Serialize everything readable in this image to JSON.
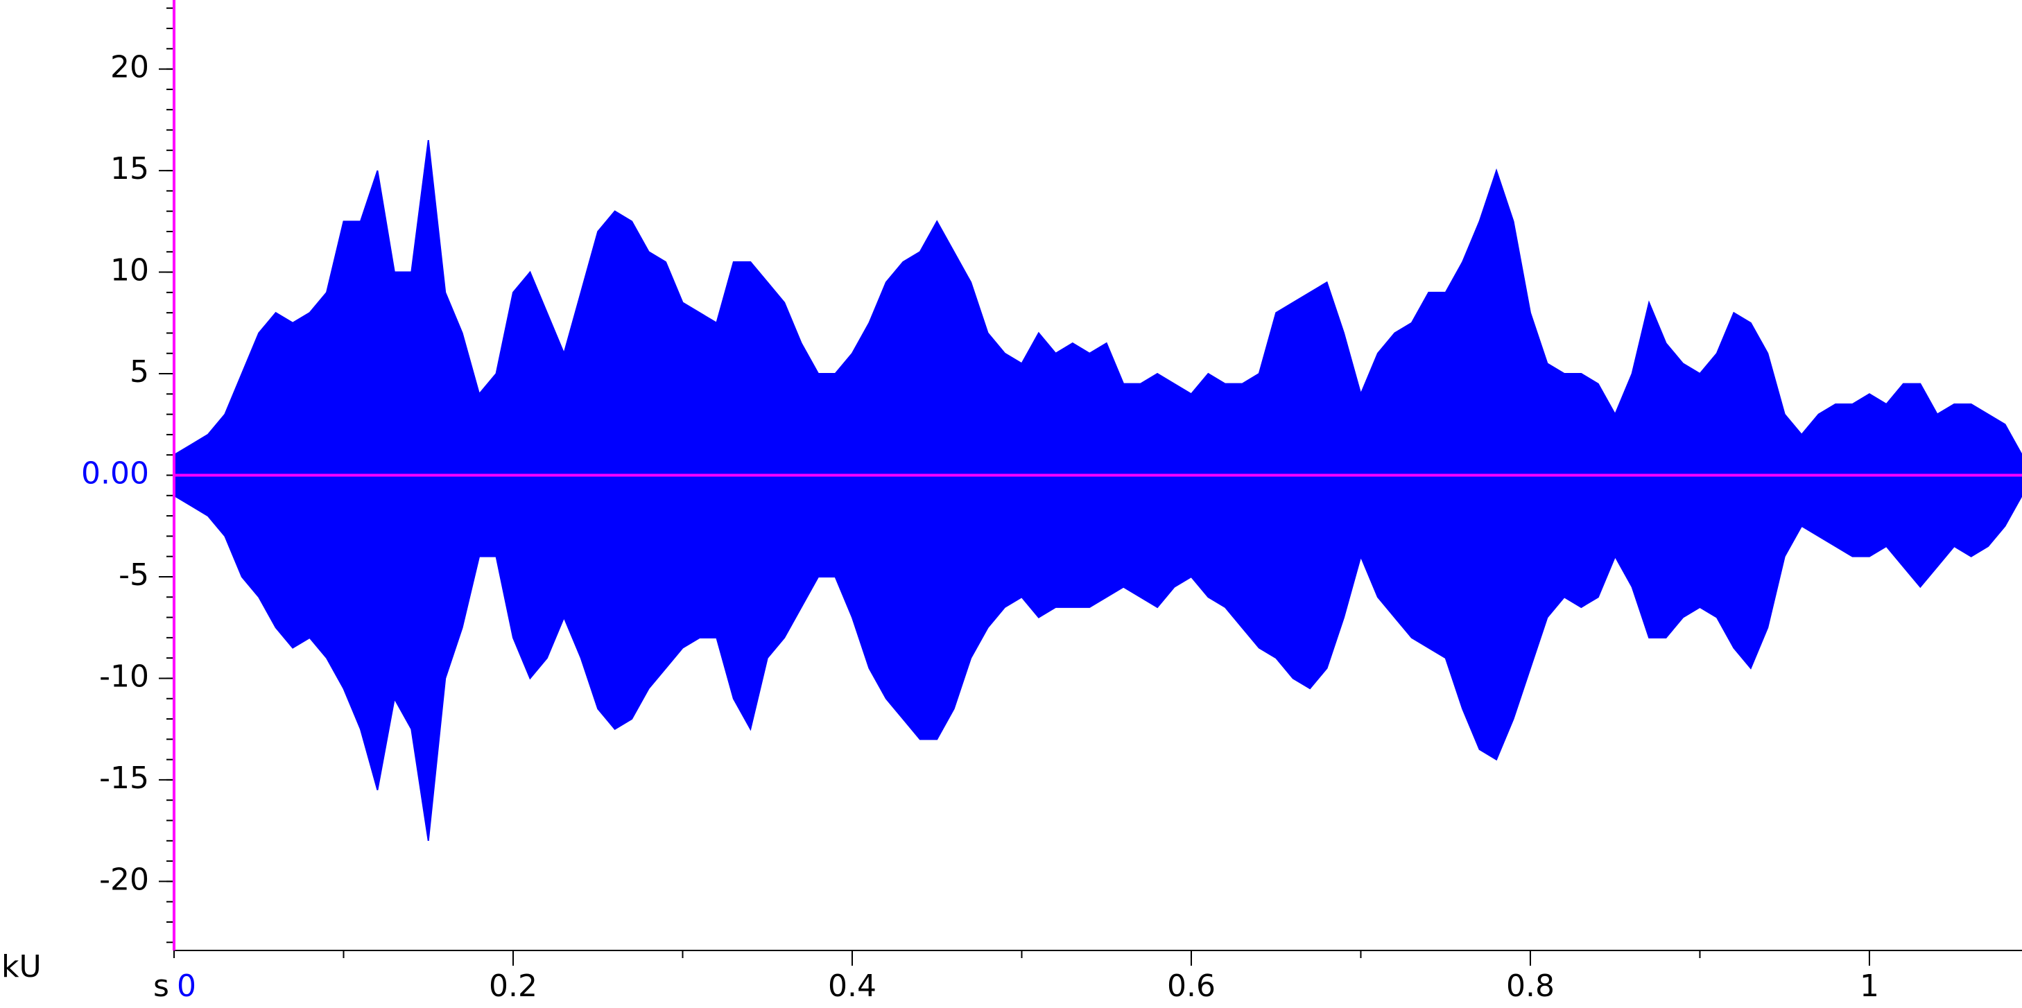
{
  "chart_data": {
    "type": "waveform",
    "x_unit": "s",
    "y_unit": "kU",
    "x": [
      0,
      0.01,
      0.02,
      0.03,
      0.04,
      0.05,
      0.06,
      0.07,
      0.08,
      0.09,
      0.1,
      0.11,
      0.12,
      0.13,
      0.14,
      0.15,
      0.16,
      0.17,
      0.18,
      0.19,
      0.2,
      0.21,
      0.22,
      0.23,
      0.24,
      0.25,
      0.26,
      0.27,
      0.28,
      0.29,
      0.3,
      0.31,
      0.32,
      0.33,
      0.34,
      0.35,
      0.36,
      0.37,
      0.38,
      0.39,
      0.4,
      0.41,
      0.42,
      0.43,
      0.44,
      0.45,
      0.46,
      0.47,
      0.48,
      0.49,
      0.5,
      0.51,
      0.52,
      0.53,
      0.54,
      0.55,
      0.56,
      0.57,
      0.58,
      0.59,
      0.6,
      0.61,
      0.62,
      0.63,
      0.64,
      0.65,
      0.66,
      0.67,
      0.68,
      0.69,
      0.7,
      0.71,
      0.72,
      0.73,
      0.74,
      0.75,
      0.76,
      0.77,
      0.78,
      0.79,
      0.8,
      0.81,
      0.82,
      0.83,
      0.84,
      0.85,
      0.86,
      0.87,
      0.88,
      0.89,
      0.9,
      0.91,
      0.92,
      0.93,
      0.94,
      0.95,
      0.96,
      0.97,
      0.98,
      0.99,
      1,
      1.01,
      1.02,
      1.03,
      1.04,
      1.05,
      1.06,
      1.07,
      1.08,
      1.09
    ],
    "series": [
      {
        "color": "#0000ff",
        "values": [
          1,
          1.5,
          2,
          3,
          5,
          7,
          8,
          7.5,
          8,
          9,
          12.5,
          12.5,
          15,
          10,
          10,
          16.5,
          9,
          7,
          4,
          5,
          9,
          10,
          8,
          6,
          9,
          12,
          13,
          12.5,
          11,
          10.5,
          8.5,
          8,
          7.5,
          10.5,
          10.5,
          9.5,
          8.5,
          6.5,
          5,
          5,
          6,
          7.5,
          9.5,
          10.5,
          11,
          12.5,
          11,
          9.5,
          7,
          6,
          5.5,
          7,
          6,
          6.5,
          6,
          6.5,
          4.5,
          4.5,
          5,
          4.5,
          4,
          5,
          4.5,
          4.5,
          5,
          8,
          8.5,
          9,
          9.5,
          7,
          4,
          6,
          7,
          7.5,
          9,
          9,
          10.5,
          12.5,
          15,
          12.5,
          8,
          5.5,
          5,
          5,
          4.5,
          3,
          5,
          8.5,
          6.5,
          5.5,
          5,
          6,
          8,
          7.5,
          6,
          3,
          2,
          3,
          3.5,
          3.5,
          4,
          3.5,
          4.5,
          4.5,
          3,
          3.5,
          3.5,
          3,
          2.5,
          1
        ]
      },
      {
        "color": "#0000ff",
        "values": [
          -1,
          -1.5,
          -2,
          -3,
          -5,
          -6,
          -7.5,
          -8.5,
          -8,
          -9,
          -10.5,
          -12.5,
          -15.5,
          -11,
          -12.5,
          -18,
          -10,
          -7.5,
          -4,
          -4,
          -8,
          -10,
          -9,
          -7,
          -9,
          -11.5,
          -12.5,
          -12,
          -10.5,
          -9.5,
          -8.5,
          -8,
          -8,
          -11,
          -12.5,
          -9,
          -8,
          -6.5,
          -5,
          -5,
          -7,
          -9.5,
          -11,
          -12,
          -13,
          -13,
          -11.5,
          -9,
          -7.5,
          -6.5,
          -6,
          -7,
          -6.5,
          -6.5,
          -6.5,
          -6,
          -5.5,
          -6,
          -6.5,
          -5.5,
          -5,
          -6,
          -6.5,
          -7.5,
          -8.5,
          -9,
          -10,
          -10.5,
          -9.5,
          -7,
          -4,
          -6,
          -7,
          -8,
          -8.5,
          -9,
          -11.5,
          -13.5,
          -14,
          -12,
          -9.5,
          -7,
          -6,
          -6.5,
          -6,
          -4,
          -5.5,
          -8,
          -8,
          -7,
          -6.5,
          -7,
          -8.5,
          -9.5,
          -7.5,
          -4,
          -2.5,
          -3,
          -3.5,
          -4,
          -4,
          -3.5,
          -4.5,
          -5.5,
          -4.5,
          -3.5,
          -4,
          -3.5,
          -2.5,
          -1
        ]
      }
    ],
    "xlim": [
      0,
      1.09
    ],
    "ylim": [
      -23.4,
      23.4
    ],
    "xticks": [
      0.2,
      0.4,
      0.6,
      0.8,
      1
    ],
    "yticks": [
      -20,
      -15,
      -10,
      -5,
      5,
      10,
      15,
      20
    ],
    "cursor": {
      "color": "#ff00ff",
      "label_color": "#0000ff",
      "x": {
        "value": 0,
        "label": "0"
      },
      "y": {
        "value": 0,
        "label": "0.00"
      }
    }
  }
}
